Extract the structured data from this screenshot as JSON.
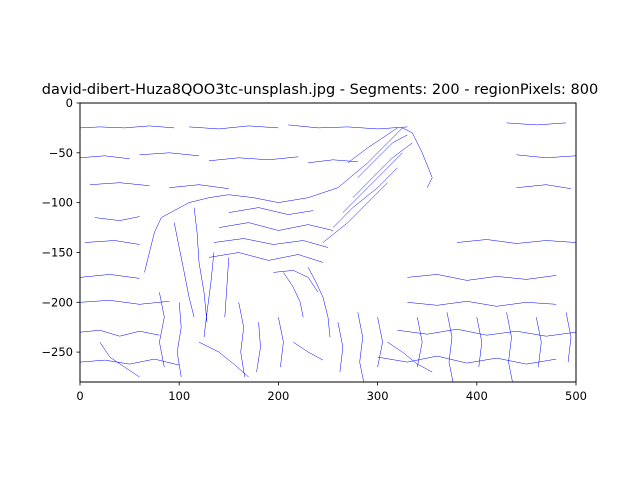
{
  "chart_data": {
    "type": "line",
    "title": "david-dibert-Huza8QOO3tc-unsplash.jpg - Segments: 200 - regionPixels: 800",
    "xlabel": "",
    "ylabel": "",
    "xlim": [
      0,
      500
    ],
    "ylim": [
      -280,
      0
    ],
    "x_ticks": [
      {
        "value": 0,
        "label": "0"
      },
      {
        "value": 100,
        "label": "100"
      },
      {
        "value": 200,
        "label": "200"
      },
      {
        "value": 300,
        "label": "300"
      },
      {
        "value": 400,
        "label": "400"
      },
      {
        "value": 500,
        "label": "500"
      }
    ],
    "y_ticks": [
      {
        "value": 0,
        "label": "0"
      },
      {
        "value": -50,
        "label": "−50"
      },
      {
        "value": -100,
        "label": "−100"
      },
      {
        "value": -150,
        "label": "−150"
      },
      {
        "value": -200,
        "label": "−200"
      },
      {
        "value": -250,
        "label": "−250"
      }
    ],
    "grid": false,
    "line_color": "#0000ff",
    "segments": [
      [
        [
          0,
          -25
        ],
        [
          20,
          -24
        ],
        [
          45,
          -25
        ],
        [
          70,
          -23
        ],
        [
          95,
          -25
        ]
      ],
      [
        [
          110,
          -24
        ],
        [
          140,
          -26
        ],
        [
          170,
          -23
        ],
        [
          200,
          -25
        ]
      ],
      [
        [
          210,
          -22
        ],
        [
          240,
          -25
        ],
        [
          270,
          -24
        ],
        [
          300,
          -26
        ],
        [
          330,
          -24
        ]
      ],
      [
        [
          430,
          -20
        ],
        [
          460,
          -22
        ],
        [
          490,
          -20
        ]
      ],
      [
        [
          0,
          -55
        ],
        [
          25,
          -53
        ],
        [
          50,
          -56
        ]
      ],
      [
        [
          60,
          -52
        ],
        [
          90,
          -50
        ],
        [
          120,
          -53
        ]
      ],
      [
        [
          130,
          -58
        ],
        [
          160,
          -55
        ],
        [
          190,
          -57
        ],
        [
          220,
          -54
        ]
      ],
      [
        [
          230,
          -60
        ],
        [
          255,
          -57
        ],
        [
          280,
          -59
        ]
      ],
      [
        [
          440,
          -52
        ],
        [
          470,
          -55
        ],
        [
          500,
          -53
        ]
      ],
      [
        [
          10,
          -82
        ],
        [
          40,
          -80
        ],
        [
          70,
          -83
        ]
      ],
      [
        [
          90,
          -85
        ],
        [
          120,
          -82
        ],
        [
          150,
          -86
        ]
      ],
      [
        [
          440,
          -85
        ],
        [
          470,
          -82
        ],
        [
          495,
          -86
        ]
      ],
      [
        [
          15,
          -115
        ],
        [
          40,
          -118
        ],
        [
          60,
          -114
        ]
      ],
      [
        [
          5,
          -140
        ],
        [
          35,
          -138
        ],
        [
          60,
          -142
        ]
      ],
      [
        [
          380,
          -140
        ],
        [
          410,
          -137
        ],
        [
          440,
          -141
        ],
        [
          470,
          -138
        ],
        [
          500,
          -140
        ]
      ],
      [
        [
          0,
          -175
        ],
        [
          30,
          -172
        ],
        [
          60,
          -176
        ]
      ],
      [
        [
          330,
          -175
        ],
        [
          360,
          -172
        ],
        [
          390,
          -178
        ],
        [
          420,
          -174
        ],
        [
          450,
          -177
        ],
        [
          480,
          -173
        ]
      ],
      [
        [
          0,
          -200
        ],
        [
          30,
          -198
        ],
        [
          60,
          -202
        ],
        [
          90,
          -199
        ]
      ],
      [
        [
          330,
          -200
        ],
        [
          360,
          -203
        ],
        [
          390,
          -199
        ],
        [
          420,
          -204
        ],
        [
          450,
          -200
        ],
        [
          480,
          -202
        ]
      ],
      [
        [
          0,
          -230
        ],
        [
          20,
          -228
        ],
        [
          40,
          -234
        ],
        [
          60,
          -229
        ],
        [
          80,
          -233
        ]
      ],
      [
        [
          320,
          -228
        ],
        [
          350,
          -232
        ],
        [
          380,
          -227
        ],
        [
          410,
          -233
        ],
        [
          440,
          -229
        ],
        [
          470,
          -234
        ],
        [
          500,
          -230
        ]
      ],
      [
        [
          0,
          -260
        ],
        [
          25,
          -258
        ],
        [
          50,
          -262
        ],
        [
          75,
          -257
        ],
        [
          100,
          -263
        ]
      ],
      [
        [
          300,
          -255
        ],
        [
          330,
          -260
        ],
        [
          360,
          -254
        ],
        [
          390,
          -261
        ],
        [
          420,
          -256
        ],
        [
          450,
          -262
        ],
        [
          480,
          -257
        ]
      ],
      [
        [
          65,
          -170
        ],
        [
          70,
          -150
        ],
        [
          75,
          -130
        ],
        [
          82,
          -115
        ],
        [
          95,
          -108
        ],
        [
          110,
          -100
        ]
      ],
      [
        [
          110,
          -100
        ],
        [
          130,
          -95
        ],
        [
          150,
          -92
        ],
        [
          175,
          -95
        ],
        [
          200,
          -100
        ]
      ],
      [
        [
          200,
          -100
        ],
        [
          230,
          -95
        ],
        [
          260,
          -85
        ],
        [
          290,
          -60
        ],
        [
          310,
          -40
        ],
        [
          325,
          -25
        ],
        [
          335,
          -30
        ],
        [
          345,
          -50
        ],
        [
          355,
          -75
        ],
        [
          350,
          -85
        ]
      ],
      [
        [
          270,
          -60
        ],
        [
          290,
          -45
        ],
        [
          305,
          -35
        ],
        [
          320,
          -25
        ]
      ],
      [
        [
          280,
          -75
        ],
        [
          300,
          -55
        ],
        [
          315,
          -40
        ],
        [
          330,
          -32
        ]
      ],
      [
        [
          275,
          -95
        ],
        [
          295,
          -75
        ],
        [
          315,
          -55
        ],
        [
          335,
          -40
        ]
      ],
      [
        [
          265,
          -110
        ],
        [
          285,
          -90
        ],
        [
          305,
          -70
        ],
        [
          325,
          -50
        ]
      ],
      [
        [
          255,
          -125
        ],
        [
          275,
          -105
        ],
        [
          300,
          -85
        ],
        [
          320,
          -65
        ]
      ],
      [
        [
          245,
          -140
        ],
        [
          270,
          -120
        ],
        [
          290,
          -100
        ],
        [
          310,
          -80
        ]
      ],
      [
        [
          150,
          -110
        ],
        [
          180,
          -105
        ],
        [
          210,
          -112
        ],
        [
          235,
          -108
        ]
      ],
      [
        [
          140,
          -125
        ],
        [
          170,
          -120
        ],
        [
          200,
          -128
        ],
        [
          230,
          -122
        ],
        [
          255,
          -128
        ]
      ],
      [
        [
          135,
          -140
        ],
        [
          165,
          -136
        ],
        [
          195,
          -142
        ],
        [
          225,
          -138
        ],
        [
          250,
          -145
        ]
      ],
      [
        [
          130,
          -155
        ],
        [
          160,
          -150
        ],
        [
          190,
          -158
        ],
        [
          220,
          -152
        ],
        [
          245,
          -160
        ]
      ],
      [
        [
          95,
          -120
        ],
        [
          100,
          -145
        ],
        [
          105,
          -170
        ],
        [
          110,
          -195
        ],
        [
          115,
          -215
        ]
      ],
      [
        [
          115,
          -105
        ],
        [
          118,
          -130
        ],
        [
          120,
          -160
        ],
        [
          125,
          -190
        ],
        [
          128,
          -220
        ]
      ],
      [
        [
          135,
          -150
        ],
        [
          132,
          -180
        ],
        [
          128,
          -210
        ],
        [
          125,
          -235
        ]
      ],
      [
        [
          150,
          -155
        ],
        [
          148,
          -185
        ],
        [
          146,
          -215
        ]
      ],
      [
        [
          205,
          -170
        ],
        [
          215,
          -185
        ],
        [
          222,
          -200
        ],
        [
          225,
          -215
        ]
      ],
      [
        [
          230,
          -165
        ],
        [
          238,
          -180
        ],
        [
          245,
          -195
        ],
        [
          250,
          -215
        ],
        [
          252,
          -235
        ]
      ],
      [
        [
          195,
          -170
        ],
        [
          215,
          -168
        ],
        [
          230,
          -175
        ],
        [
          240,
          -190
        ]
      ],
      [
        [
          80,
          -190
        ],
        [
          85,
          -215
        ],
        [
          80,
          -240
        ],
        [
          85,
          -265
        ]
      ],
      [
        [
          100,
          -200
        ],
        [
          102,
          -225
        ],
        [
          98,
          -250
        ],
        [
          102,
          -275
        ]
      ],
      [
        [
          160,
          -200
        ],
        [
          165,
          -225
        ],
        [
          162,
          -250
        ],
        [
          166,
          -275
        ]
      ],
      [
        [
          180,
          -220
        ],
        [
          182,
          -245
        ],
        [
          178,
          -270
        ]
      ],
      [
        [
          200,
          -215
        ],
        [
          205,
          -240
        ],
        [
          202,
          -265
        ]
      ],
      [
        [
          260,
          -220
        ],
        [
          265,
          -245
        ],
        [
          262,
          -270
        ]
      ],
      [
        [
          280,
          -210
        ],
        [
          285,
          -235
        ],
        [
          282,
          -260
        ],
        [
          286,
          -280
        ]
      ],
      [
        [
          300,
          -215
        ],
        [
          305,
          -240
        ],
        [
          300,
          -265
        ]
      ],
      [
        [
          340,
          -215
        ],
        [
          345,
          -240
        ],
        [
          340,
          -265
        ]
      ],
      [
        [
          370,
          -210
        ],
        [
          375,
          -235
        ],
        [
          372,
          -260
        ],
        [
          376,
          -280
        ]
      ],
      [
        [
          400,
          -215
        ],
        [
          405,
          -240
        ],
        [
          402,
          -265
        ]
      ],
      [
        [
          430,
          -210
        ],
        [
          435,
          -235
        ],
        [
          432,
          -260
        ],
        [
          436,
          -280
        ]
      ],
      [
        [
          460,
          -215
        ],
        [
          465,
          -240
        ],
        [
          462,
          -265
        ]
      ],
      [
        [
          490,
          -210
        ],
        [
          495,
          -235
        ],
        [
          492,
          -260
        ]
      ],
      [
        [
          20,
          -240
        ],
        [
          30,
          -255
        ],
        [
          45,
          -265
        ],
        [
          60,
          -275
        ]
      ],
      [
        [
          120,
          -240
        ],
        [
          140,
          -250
        ],
        [
          155,
          -262
        ],
        [
          170,
          -275
        ]
      ],
      [
        [
          215,
          -240
        ],
        [
          230,
          -250
        ],
        [
          245,
          -258
        ]
      ],
      [
        [
          310,
          -240
        ],
        [
          325,
          -250
        ],
        [
          340,
          -262
        ],
        [
          355,
          -270
        ]
      ]
    ]
  }
}
